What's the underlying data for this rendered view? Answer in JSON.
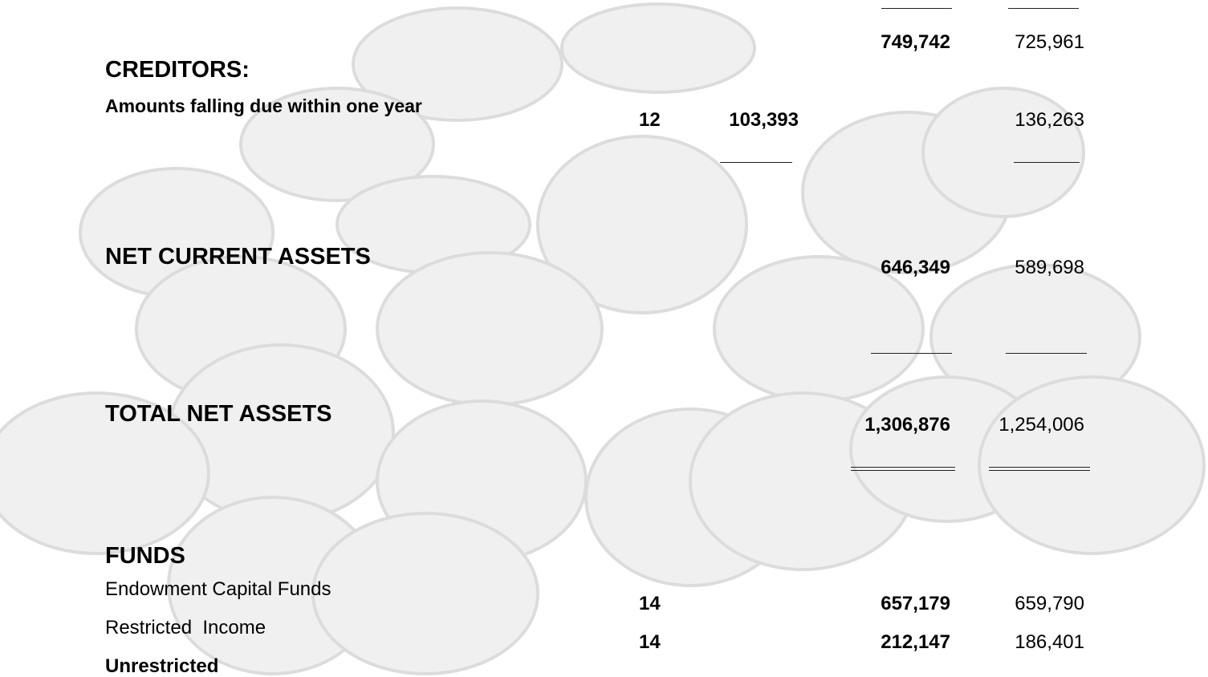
{
  "rows": [
    {
      "current": "749,742",
      "prior": "725,961"
    },
    {
      "label": "CREDITORS:"
    },
    {
      "label": "Amounts falling due within one year",
      "note": "12",
      "sub": "103,393",
      "prior": "136,263"
    },
    {
      "label": "NET CURRENT ASSETS",
      "current": "646,349",
      "prior": "589,698"
    },
    {
      "label": "TOTAL NET ASSETS",
      "current": "1,306,876",
      "prior": "1,254,006"
    },
    {
      "label": "FUNDS"
    },
    {
      "label": "Endowment Capital Funds",
      "note": "14",
      "current": "657,179",
      "prior": "659,790"
    },
    {
      "label": "Restricted  Income",
      "note": "14",
      "current": "212,147",
      "prior": "186,401"
    },
    {
      "label": "Unrestricted"
    }
  ]
}
